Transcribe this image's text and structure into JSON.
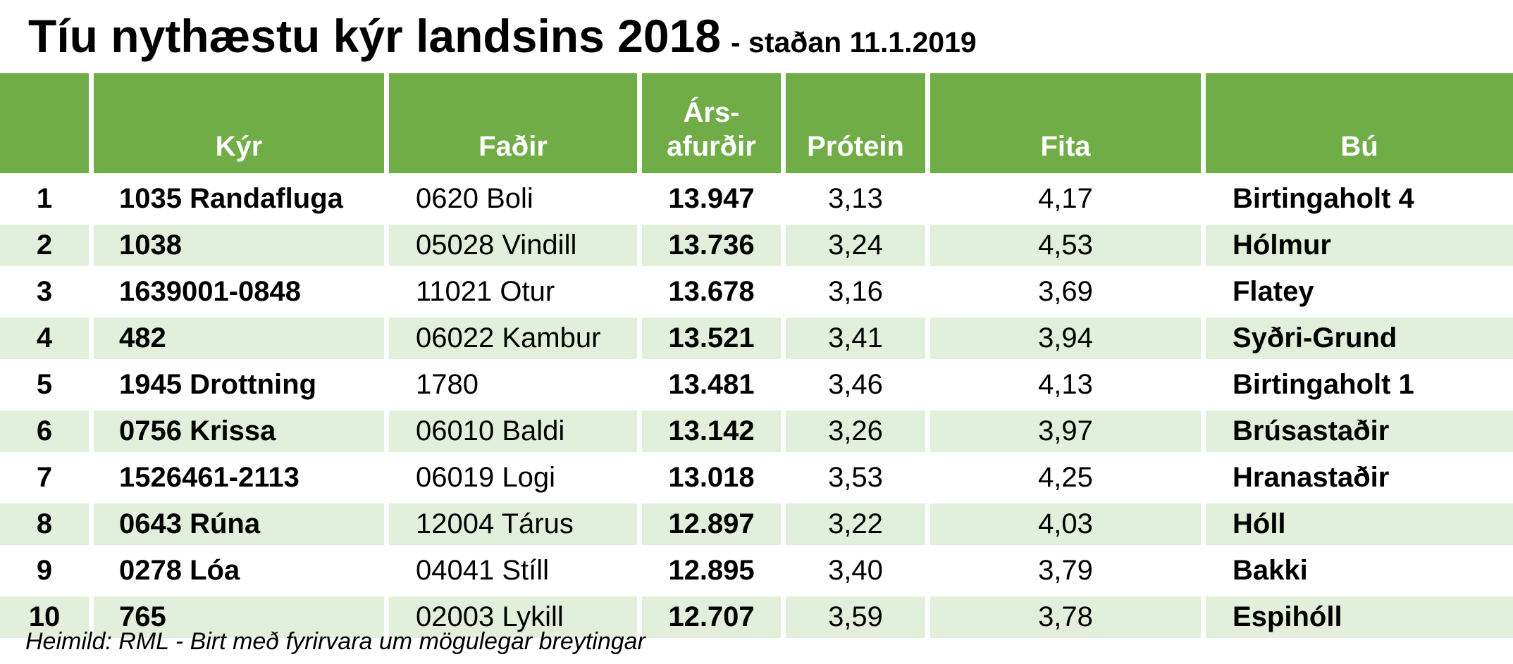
{
  "header": {
    "title": "Tíu nythæstu kýr landsins 2018",
    "subtitle": "- staðan 11.1.2019"
  },
  "columns": {
    "rank": "",
    "cow": "Kýr",
    "sire": "Faðir",
    "milk_line1": "Árs-",
    "milk_line2": "afurðir",
    "protein": "Prótein",
    "fat": "Fita",
    "farm": "Bú"
  },
  "rows": [
    {
      "rank": "1",
      "cow": "1035 Randafluga",
      "sire": "0620 Boli",
      "milk": "13.947",
      "protein": "3,13",
      "fat": "4,17",
      "farm": "Birtingaholt 4"
    },
    {
      "rank": "2",
      "cow": "1038",
      "sire": "05028 Vindill",
      "milk": "13.736",
      "protein": "3,24",
      "fat": "4,53",
      "farm": "Hólmur"
    },
    {
      "rank": "3",
      "cow": "1639001-0848",
      "sire": "11021 Otur",
      "milk": "13.678",
      "protein": "3,16",
      "fat": "3,69",
      "farm": "Flatey"
    },
    {
      "rank": "4",
      "cow": "482",
      "sire": "06022 Kambur",
      "milk": "13.521",
      "protein": "3,41",
      "fat": "3,94",
      "farm": "Syðri-Grund"
    },
    {
      "rank": "5",
      "cow": "1945 Drottning",
      "sire": "1780",
      "milk": "13.481",
      "protein": "3,46",
      "fat": "4,13",
      "farm": "Birtingaholt 1"
    },
    {
      "rank": "6",
      "cow": "0756 Krissa",
      "sire": "06010 Baldi",
      "milk": "13.142",
      "protein": "3,26",
      "fat": "3,97",
      "farm": "Brúsastaðir"
    },
    {
      "rank": "7",
      "cow": "1526461-2113",
      "sire": "06019 Logi",
      "milk": "13.018",
      "protein": "3,53",
      "fat": "4,25",
      "farm": "Hranastaðir"
    },
    {
      "rank": "8",
      "cow": "0643 Rúna",
      "sire": "12004 Tárus",
      "milk": "12.897",
      "protein": "3,22",
      "fat": "4,03",
      "farm": "Hóll"
    },
    {
      "rank": "9",
      "cow": "0278 Lóa",
      "sire": "04041 Stíll",
      "milk": "12.895",
      "protein": "3,40",
      "fat": "3,79",
      "farm": "Bakki"
    },
    {
      "rank": "10",
      "cow": "765",
      "sire": "02003 Lykill",
      "milk": "12.707",
      "protein": "3,59",
      "fat": "3,78",
      "farm": "Espihóll"
    }
  ],
  "footer": {
    "source": "Heimild: RML - Birt með fyrirvara um mögulegar breytingar"
  },
  "colors": {
    "header_green": "#70ad47",
    "stripe_light_green": "#e2efda"
  }
}
